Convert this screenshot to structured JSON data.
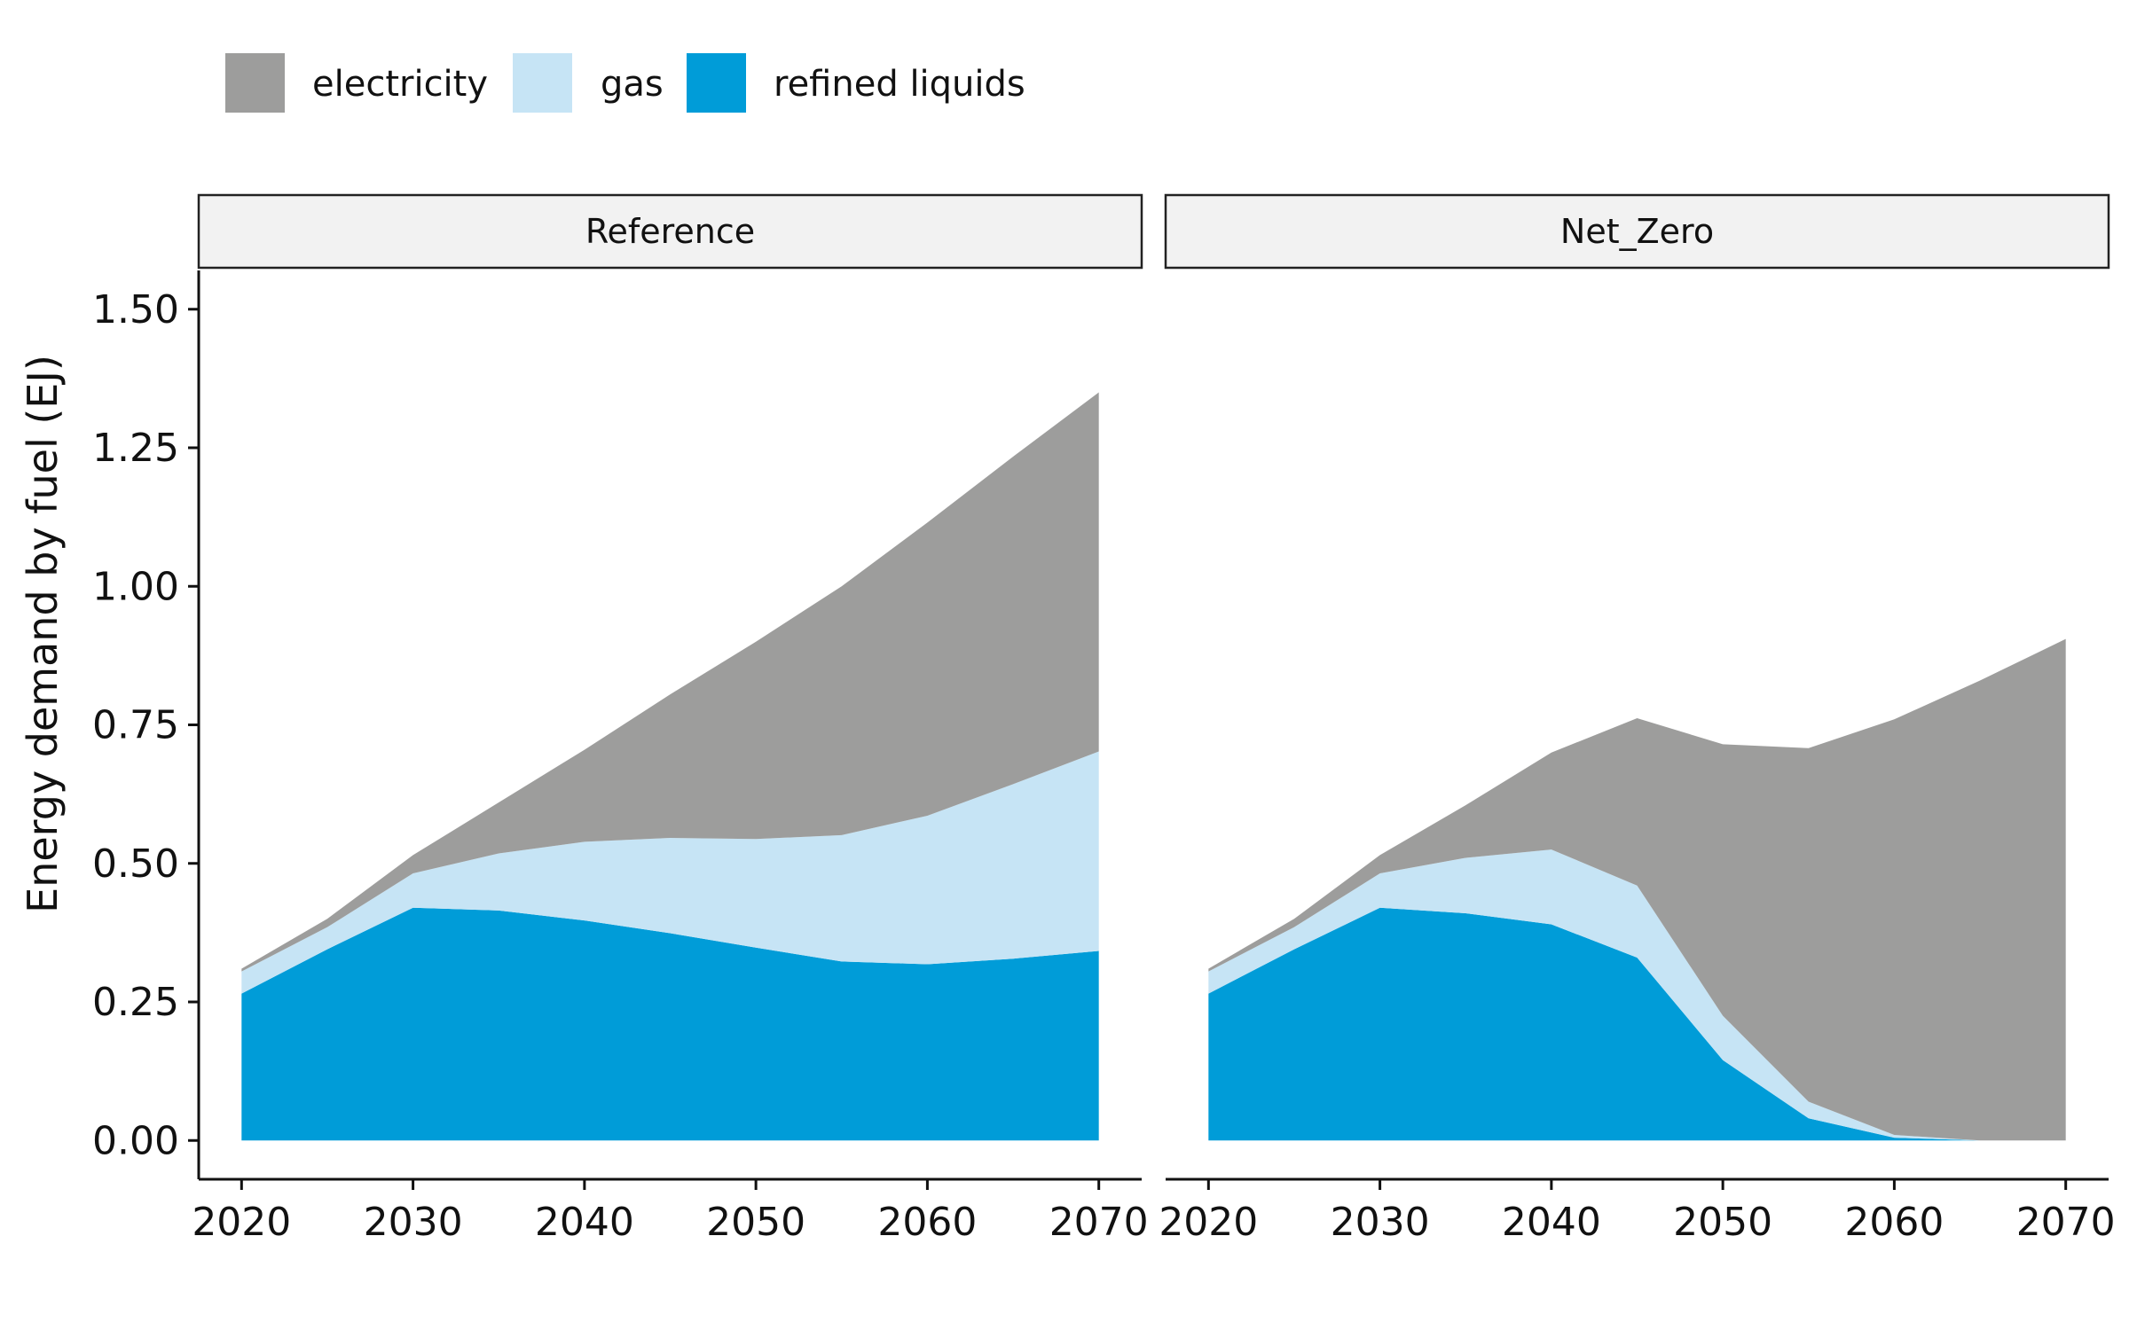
{
  "chart_data": {
    "type": "area",
    "stacked": true,
    "ylabel": "Energy demand by fuel (EJ)",
    "xlabel": "",
    "ylim": [
      -0.07,
      1.57
    ],
    "xlim": [
      2017.5,
      2072.5
    ],
    "yticks": [
      0,
      0.25,
      0.5,
      0.75,
      1.0,
      1.25,
      1.5
    ],
    "ytick_labels": [
      "0.00",
      "0.25",
      "0.50",
      "0.75",
      "1.00",
      "1.25",
      "1.50"
    ],
    "xticks": [
      2020,
      2030,
      2040,
      2050,
      2060,
      2070
    ],
    "xtick_labels": [
      "2020",
      "2030",
      "2040",
      "2050",
      "2060",
      "2070"
    ],
    "legend_position": "top",
    "stack_order": [
      "refined liquids",
      "gas",
      "electricity"
    ],
    "colors": {
      "electricity": "#9d9d9c",
      "gas": "#c6e4f5",
      "refined liquids": "#009cd8"
    },
    "legend": [
      {
        "name": "electricity",
        "color": "#9d9d9c"
      },
      {
        "name": "gas",
        "color": "#c6e4f5"
      },
      {
        "name": "refined liquids",
        "color": "#009cd8"
      }
    ],
    "x": [
      2020,
      2025,
      2030,
      2035,
      2040,
      2045,
      2050,
      2055,
      2060,
      2065,
      2070
    ],
    "panels": [
      {
        "label": "Reference",
        "series": [
          {
            "name": "refined liquids",
            "values": [
              0.265,
              0.345,
              0.42,
              0.415,
              0.397,
              0.374,
              0.348,
              0.323,
              0.318,
              0.328,
              0.342
            ]
          },
          {
            "name": "gas",
            "values": [
              0.04,
              0.04,
              0.062,
              0.103,
              0.142,
              0.172,
              0.196,
              0.228,
              0.268,
              0.315,
              0.36
            ]
          },
          {
            "name": "electricity",
            "values": [
              0.005,
              0.015,
              0.033,
              0.092,
              0.166,
              0.259,
              0.356,
              0.449,
              0.529,
              0.591,
              0.648
            ]
          }
        ]
      },
      {
        "label": "Net_Zero",
        "series": [
          {
            "name": "refined liquids",
            "values": [
              0.265,
              0.345,
              0.42,
              0.41,
              0.39,
              0.33,
              0.145,
              0.04,
              0.005,
              0.0,
              0.0
            ]
          },
          {
            "name": "gas",
            "values": [
              0.04,
              0.04,
              0.062,
              0.1,
              0.135,
              0.13,
              0.08,
              0.03,
              0.005,
              0.0,
              0.0
            ]
          },
          {
            "name": "electricity",
            "values": [
              0.005,
              0.015,
              0.033,
              0.095,
              0.175,
              0.302,
              0.49,
              0.638,
              0.75,
              0.83,
              0.905
            ]
          }
        ]
      }
    ]
  }
}
